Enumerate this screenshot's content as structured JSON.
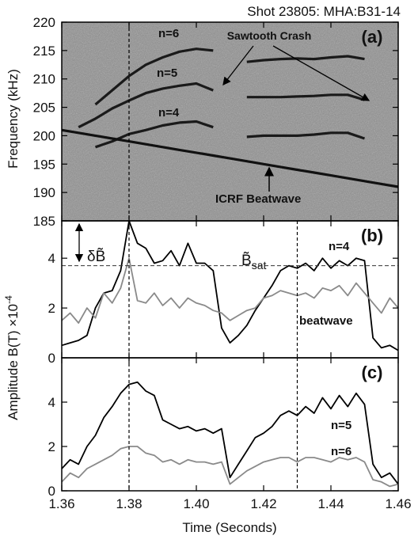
{
  "chart_data": [
    {
      "type": "line",
      "title": "Shot 23805: MHA:B31-14",
      "panel_label": "(a)",
      "ylabel": "Frequency (kHz)",
      "background": "#8e8e8e",
      "x": [
        1.36,
        1.365,
        1.37,
        1.375,
        1.38,
        1.385,
        1.39,
        1.395,
        1.4,
        1.405,
        1.41,
        1.415,
        1.42,
        1.425,
        1.43,
        1.435,
        1.44,
        1.445,
        1.45,
        1.455,
        1.46
      ],
      "series": [
        {
          "name": "n=6",
          "color": "#1a1a1a",
          "values": [
            null,
            null,
            205.5,
            208,
            210.5,
            212.5,
            213.8,
            214.8,
            215.3,
            215,
            null,
            213,
            213.3,
            213.5,
            213.6,
            213.5,
            213.8,
            214,
            213.5,
            null,
            null
          ]
        },
        {
          "name": "n=5",
          "color": "#1a1a1a",
          "values": [
            null,
            201.5,
            203,
            204.8,
            206.2,
            207.5,
            208.3,
            208.8,
            209.2,
            208,
            null,
            206.8,
            206.8,
            206.8,
            206.9,
            207,
            207.2,
            207.2,
            206.3,
            null,
            null
          ]
        },
        {
          "name": "n=4",
          "color": "#1a1a1a",
          "values": [
            null,
            null,
            198,
            199,
            200.3,
            201,
            201.8,
            202.3,
            202.5,
            201.5,
            null,
            199.8,
            200,
            200,
            200,
            200.2,
            200.5,
            200.5,
            199.5,
            null,
            null
          ]
        },
        {
          "name": "ICRF Beatwave",
          "color": "#111111",
          "values": [
            201,
            200.5,
            200,
            199.5,
            199,
            198.5,
            198,
            197.5,
            197,
            196.5,
            196,
            195.5,
            195,
            194.5,
            194,
            193.5,
            193,
            192.5,
            192,
            191.5,
            191
          ]
        }
      ],
      "annotations": [
        "Sawtooth Crash"
      ],
      "xlim": [
        1.36,
        1.46
      ],
      "ylim": [
        185,
        220
      ],
      "yticks": [
        185,
        190,
        195,
        200,
        205,
        210,
        215,
        220
      ],
      "vlines": [
        1.38
      ]
    },
    {
      "type": "line",
      "panel_label": "(b)",
      "ylabel": "Amplitude B(T) ×10",
      "ylabel_exponent": "-4",
      "x": [
        1.36,
        1.3625,
        1.365,
        1.3675,
        1.37,
        1.3725,
        1.375,
        1.3775,
        1.38,
        1.3825,
        1.385,
        1.3875,
        1.39,
        1.3925,
        1.395,
        1.3975,
        1.4,
        1.4025,
        1.405,
        1.4075,
        1.41,
        1.4125,
        1.415,
        1.4175,
        1.42,
        1.4225,
        1.425,
        1.4275,
        1.43,
        1.4325,
        1.435,
        1.4375,
        1.44,
        1.4425,
        1.445,
        1.4475,
        1.45,
        1.4525,
        1.455,
        1.4575,
        1.46
      ],
      "series": [
        {
          "name": "n=4",
          "color": "#000000",
          "values": [
            0.5,
            0.6,
            0.7,
            0.9,
            2.0,
            2.6,
            2.7,
            3.5,
            5.5,
            4.6,
            4.4,
            3.8,
            3.9,
            4.3,
            3.7,
            4.6,
            3.8,
            3.8,
            3.5,
            1.2,
            0.6,
            0.9,
            1.3,
            1.9,
            2.4,
            2.9,
            3.5,
            3.7,
            3.6,
            3.8,
            3.5,
            4.0,
            3.6,
            3.9,
            3.7,
            4.0,
            3.9,
            0.8,
            0.4,
            0.5,
            0.3
          ]
        },
        {
          "name": "beatwave",
          "color": "#8a8a8a",
          "values": [
            1.5,
            1.8,
            1.4,
            2.0,
            1.6,
            2.6,
            2.2,
            2.8,
            4.0,
            2.3,
            2.2,
            2.6,
            2.1,
            2.4,
            2.0,
            2.4,
            2.2,
            2.1,
            1.9,
            1.8,
            1.5,
            1.7,
            1.9,
            2.0,
            2.4,
            2.5,
            2.7,
            2.6,
            2.5,
            2.6,
            2.4,
            2.8,
            2.7,
            2.9,
            2.5,
            3.0,
            2.6,
            2.2,
            1.8,
            2.4,
            2.0
          ]
        }
      ],
      "annotations": [
        "δB̃"
      ],
      "hline": 3.7,
      "hline_label": "B̃",
      "hline_label_sub": "sat",
      "xlim": [
        1.36,
        1.46
      ],
      "ylim": [
        0,
        5.5
      ],
      "yticks": [
        0,
        2,
        4
      ],
      "vlines": [
        1.38,
        1.43
      ]
    },
    {
      "type": "line",
      "panel_label": "(c)",
      "xlabel": "Time (Seconds)",
      "x": [
        1.36,
        1.3625,
        1.365,
        1.3675,
        1.37,
        1.3725,
        1.375,
        1.3775,
        1.38,
        1.3825,
        1.385,
        1.3875,
        1.39,
        1.3925,
        1.395,
        1.3975,
        1.4,
        1.4025,
        1.405,
        1.4075,
        1.41,
        1.4125,
        1.415,
        1.4175,
        1.42,
        1.4225,
        1.425,
        1.4275,
        1.43,
        1.4325,
        1.435,
        1.4375,
        1.44,
        1.4425,
        1.445,
        1.4475,
        1.45,
        1.4525,
        1.455,
        1.4575,
        1.46
      ],
      "series": [
        {
          "name": "n=5",
          "color": "#000000",
          "values": [
            1.0,
            1.4,
            1.2,
            2.0,
            2.5,
            3.3,
            3.8,
            4.4,
            4.8,
            4.9,
            4.5,
            4.3,
            3.2,
            3.0,
            2.8,
            2.9,
            2.7,
            2.8,
            2.6,
            2.8,
            0.6,
            1.2,
            1.8,
            2.4,
            2.6,
            2.9,
            3.4,
            3.6,
            3.4,
            3.8,
            3.5,
            4.2,
            3.7,
            4.3,
            3.8,
            4.4,
            3.9,
            1.2,
            0.6,
            0.8,
            0.3
          ]
        },
        {
          "name": "n=6",
          "color": "#8a8a8a",
          "values": [
            0.4,
            0.8,
            0.6,
            1.0,
            1.2,
            1.4,
            1.6,
            1.9,
            2.0,
            2.0,
            1.7,
            1.6,
            1.3,
            1.4,
            1.2,
            1.4,
            1.3,
            1.3,
            1.2,
            1.3,
            0.3,
            0.6,
            0.9,
            1.1,
            1.3,
            1.4,
            1.5,
            1.5,
            1.3,
            1.5,
            1.5,
            1.4,
            1.3,
            1.5,
            1.4,
            1.5,
            1.3,
            0.5,
            0.4,
            0.2,
            0.3
          ]
        }
      ],
      "xlim": [
        1.36,
        1.46
      ],
      "xticks": [
        1.36,
        1.38,
        {
          "value": 1.4,
          "label": "1.40"
        },
        1.42,
        1.44,
        1.46
      ],
      "ylim": [
        0,
        6
      ],
      "yticks": [
        0,
        2,
        4
      ],
      "vlines": [
        1.38,
        1.43
      ]
    }
  ]
}
